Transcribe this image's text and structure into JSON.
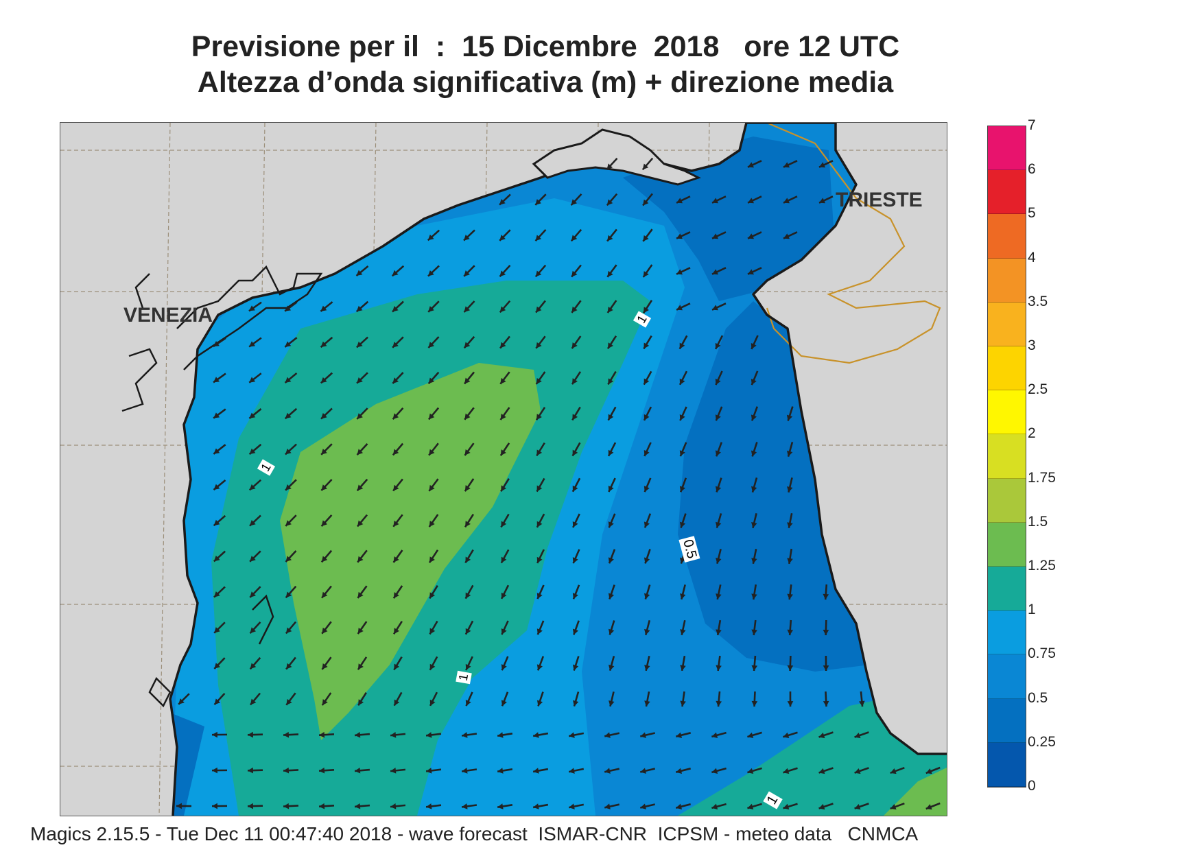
{
  "header": {
    "title_line1": "Previsione per il  :  15 Dicembre  2018   ore 12 UTC",
    "title_line2": "Altezza d’onda significativa (m) + direzione media"
  },
  "map": {
    "places": [
      {
        "id": "venezia",
        "label": "VENEZIA"
      },
      {
        "id": "trieste",
        "label": "TRIESTE"
      }
    ],
    "contour_labels": [
      {
        "id": "contour-label-1a",
        "label": "1"
      },
      {
        "id": "contour-label-1b",
        "label": "1"
      },
      {
        "id": "contour-label-1c",
        "label": "1"
      },
      {
        "id": "contour-label-1d",
        "label": "1"
      },
      {
        "id": "contour-label-05",
        "label": "0.5"
      }
    ],
    "colors": {
      "land": "#d4d4d4",
      "coast": "#1a1a1a",
      "border": "#c8922a",
      "grid": "#9c8f7a",
      "arrow": "#222222"
    },
    "wave_direction": "south-west"
  },
  "legend": {
    "labels": [
      "7",
      "6",
      "5",
      "4",
      "3.5",
      "3",
      "2.5",
      "2",
      "1.75",
      "1.5",
      "1.25",
      "1",
      "0.75",
      "0.5",
      "0.25",
      "0"
    ],
    "colors": [
      "#e8136d",
      "#e5202a",
      "#ee6a23",
      "#f39324",
      "#f9b21e",
      "#fdd400",
      "#fff700",
      "#d8df22",
      "#aac83a",
      "#6cbc50",
      "#16aa98",
      "#0a9de0",
      "#0a87d4",
      "#0470c0",
      "#0457ad"
    ]
  },
  "footer": {
    "credit": "Magics 2.15.5 - Tue Dec 11 00:47:40 2018 - wave forecast  ISMAR-CNR  ICPSM - meteo data   CNMCA"
  }
}
